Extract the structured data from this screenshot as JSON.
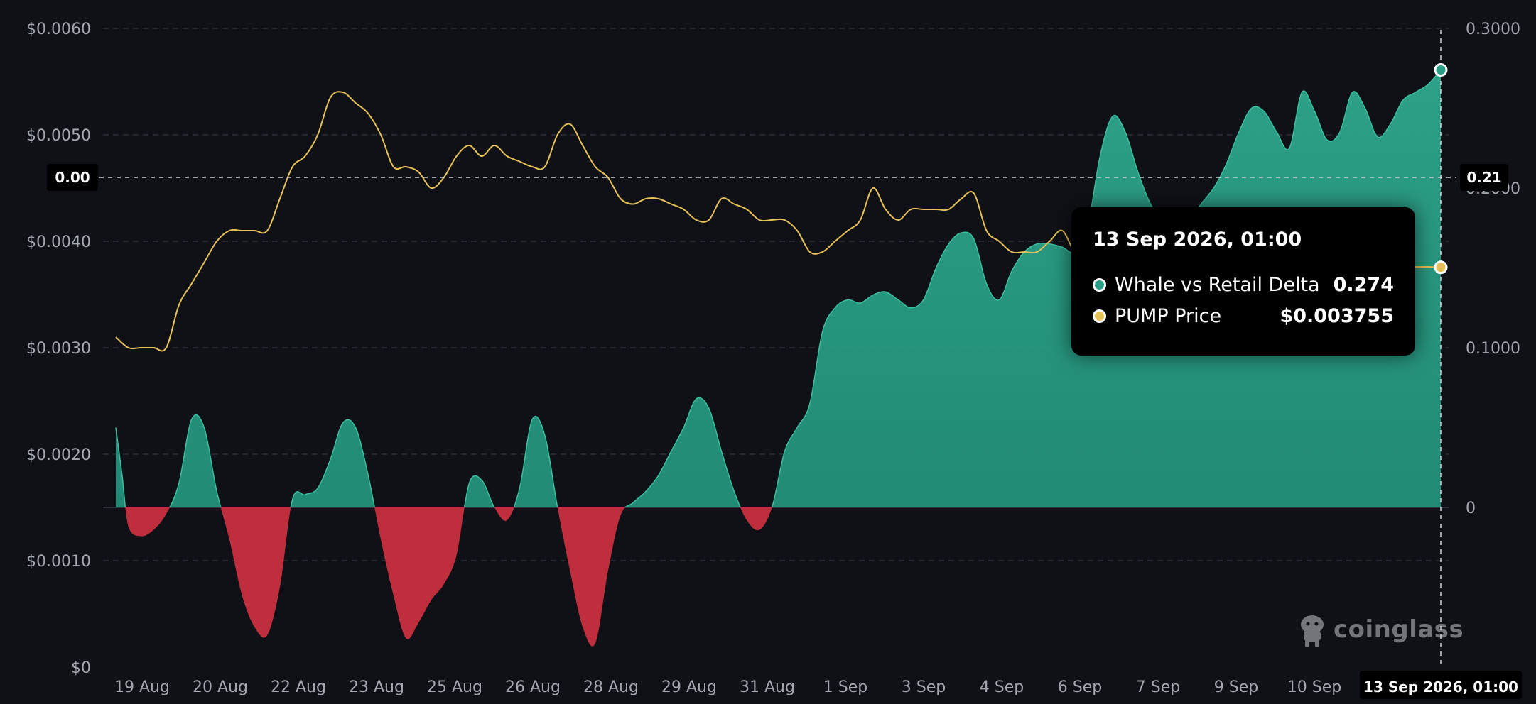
{
  "chart_data": {
    "type": "area",
    "x_labels": [
      "19 Aug",
      "20 Aug",
      "22 Aug",
      "23 Aug",
      "25 Aug",
      "26 Aug",
      "28 Aug",
      "29 Aug",
      "31 Aug",
      "1 Sep",
      "3 Sep",
      "4 Sep",
      "6 Sep",
      "7 Sep",
      "9 Sep",
      "10 Sep"
    ],
    "x_crosshair_label": "13 Sep 2026, 01:00",
    "left_axis": {
      "ticks": [
        "$0",
        "$0.0010",
        "$0.0020",
        "$0.0030",
        "$0.0040",
        "$0.0050",
        "$0.0060"
      ],
      "range": [
        0,
        0.006
      ]
    },
    "right_axis": {
      "ticks": [
        "0",
        "0.1000",
        "0.2000",
        "0.3000"
      ],
      "range": [
        -0.1,
        0.3
      ]
    },
    "crosshair": {
      "left_badge": "0.00",
      "right_badge": "0.21"
    },
    "series": [
      {
        "name": "Whale vs Retail Delta",
        "axis": "right",
        "type": "area",
        "positive_color": "#2a9d86",
        "negative_color": "#c8303f",
        "points": [
          [
            0,
            0.05
          ],
          [
            0.5,
            0.02
          ],
          [
            1,
            -0.012
          ],
          [
            2,
            -0.018
          ],
          [
            3,
            -0.014
          ],
          [
            4,
            -0.004
          ],
          [
            5,
            0.015
          ],
          [
            6,
            0.055
          ],
          [
            7,
            0.05
          ],
          [
            8,
            0.01
          ],
          [
            9,
            -0.02
          ],
          [
            10,
            -0.055
          ],
          [
            11,
            -0.075
          ],
          [
            12,
            -0.08
          ],
          [
            13,
            -0.05
          ],
          [
            14,
            0.005
          ],
          [
            15,
            0.008
          ],
          [
            16,
            0.012
          ],
          [
            17,
            0.03
          ],
          [
            18,
            0.053
          ],
          [
            19,
            0.05
          ],
          [
            20,
            0.02
          ],
          [
            21,
            -0.02
          ],
          [
            22,
            -0.055
          ],
          [
            23,
            -0.082
          ],
          [
            24,
            -0.072
          ],
          [
            25,
            -0.058
          ],
          [
            26,
            -0.048
          ],
          [
            27,
            -0.03
          ],
          [
            28,
            0.015
          ],
          [
            29,
            0.017
          ],
          [
            30,
            0.0
          ],
          [
            31,
            -0.008
          ],
          [
            32,
            0.012
          ],
          [
            33,
            0.055
          ],
          [
            34,
            0.045
          ],
          [
            35,
            0.0
          ],
          [
            36,
            -0.04
          ],
          [
            37,
            -0.075
          ],
          [
            38,
            -0.085
          ],
          [
            39,
            -0.04
          ],
          [
            40,
            -0.005
          ],
          [
            41,
            0.003
          ],
          [
            42,
            0.01
          ],
          [
            43,
            0.02
          ],
          [
            44,
            0.035
          ],
          [
            45,
            0.05
          ],
          [
            46,
            0.068
          ],
          [
            47,
            0.062
          ],
          [
            48,
            0.035
          ],
          [
            49,
            0.01
          ],
          [
            50,
            -0.008
          ],
          [
            51,
            -0.014
          ],
          [
            52,
            0.0
          ],
          [
            53,
            0.035
          ],
          [
            54,
            0.05
          ],
          [
            55,
            0.065
          ],
          [
            56,
            0.11
          ],
          [
            57,
            0.125
          ],
          [
            58,
            0.13
          ],
          [
            59,
            0.128
          ],
          [
            60,
            0.133
          ],
          [
            61,
            0.135
          ],
          [
            62,
            0.13
          ],
          [
            63,
            0.125
          ],
          [
            64,
            0.13
          ],
          [
            65,
            0.15
          ],
          [
            66,
            0.165
          ],
          [
            67,
            0.172
          ],
          [
            68,
            0.168
          ],
          [
            69,
            0.14
          ],
          [
            70,
            0.13
          ],
          [
            71,
            0.148
          ],
          [
            72,
            0.16
          ],
          [
            73,
            0.165
          ],
          [
            74,
            0.165
          ],
          [
            75,
            0.163
          ],
          [
            76,
            0.16
          ],
          [
            77,
            0.175
          ],
          [
            78,
            0.22
          ],
          [
            79,
            0.245
          ],
          [
            80,
            0.235
          ],
          [
            81,
            0.21
          ],
          [
            82,
            0.19
          ],
          [
            83,
            0.18
          ],
          [
            84,
            0.175
          ],
          [
            85,
            0.178
          ],
          [
            86,
            0.19
          ],
          [
            87,
            0.2
          ],
          [
            88,
            0.215
          ],
          [
            89,
            0.235
          ],
          [
            90,
            0.25
          ],
          [
            91,
            0.248
          ],
          [
            92,
            0.235
          ],
          [
            93,
            0.225
          ],
          [
            94,
            0.26
          ],
          [
            95,
            0.248
          ],
          [
            96,
            0.23
          ],
          [
            97,
            0.235
          ],
          [
            98,
            0.26
          ],
          [
            99,
            0.25
          ],
          [
            100,
            0.232
          ],
          [
            101,
            0.24
          ],
          [
            102,
            0.255
          ],
          [
            103,
            0.26
          ],
          [
            104,
            0.265
          ],
          [
            105,
            0.274
          ]
        ]
      },
      {
        "name": "PUMP Price",
        "axis": "left",
        "type": "line",
        "color": "#e6c157",
        "points": [
          [
            0,
            0.0031
          ],
          [
            1,
            0.003
          ],
          [
            2,
            0.003
          ],
          [
            3,
            0.003
          ],
          [
            4,
            0.003
          ],
          [
            5,
            0.0034
          ],
          [
            6,
            0.0036
          ],
          [
            7,
            0.0038
          ],
          [
            8,
            0.004
          ],
          [
            9,
            0.0041
          ],
          [
            10,
            0.0041
          ],
          [
            11,
            0.0041
          ],
          [
            12,
            0.0041
          ],
          [
            13,
            0.0044
          ],
          [
            14,
            0.0047
          ],
          [
            15,
            0.0048
          ],
          [
            16,
            0.005
          ],
          [
            17,
            0.00535
          ],
          [
            18,
            0.0054
          ],
          [
            19,
            0.0053
          ],
          [
            20,
            0.0052
          ],
          [
            21,
            0.005
          ],
          [
            22,
            0.0047
          ],
          [
            23,
            0.0047
          ],
          [
            24,
            0.00465
          ],
          [
            25,
            0.0045
          ],
          [
            26,
            0.0046
          ],
          [
            27,
            0.0048
          ],
          [
            28,
            0.0049
          ],
          [
            29,
            0.0048
          ],
          [
            30,
            0.0049
          ],
          [
            31,
            0.0048
          ],
          [
            32,
            0.00475
          ],
          [
            33,
            0.0047
          ],
          [
            34,
            0.0047
          ],
          [
            35,
            0.005
          ],
          [
            36,
            0.0051
          ],
          [
            37,
            0.0049
          ],
          [
            38,
            0.0047
          ],
          [
            39,
            0.0046
          ],
          [
            40,
            0.0044
          ],
          [
            41,
            0.00435
          ],
          [
            42,
            0.0044
          ],
          [
            43,
            0.0044
          ],
          [
            44,
            0.00435
          ],
          [
            45,
            0.0043
          ],
          [
            46,
            0.0042
          ],
          [
            47,
            0.0042
          ],
          [
            48,
            0.0044
          ],
          [
            49,
            0.00435
          ],
          [
            50,
            0.0043
          ],
          [
            51,
            0.0042
          ],
          [
            52,
            0.0042
          ],
          [
            53,
            0.0042
          ],
          [
            54,
            0.0041
          ],
          [
            55,
            0.0039
          ],
          [
            56,
            0.0039
          ],
          [
            57,
            0.004
          ],
          [
            58,
            0.0041
          ],
          [
            59,
            0.0042
          ],
          [
            60,
            0.0045
          ],
          [
            61,
            0.0043
          ],
          [
            62,
            0.0042
          ],
          [
            63,
            0.0043
          ],
          [
            64,
            0.0043
          ],
          [
            65,
            0.0043
          ],
          [
            66,
            0.0043
          ],
          [
            67,
            0.0044
          ],
          [
            68,
            0.00445
          ],
          [
            69,
            0.0041
          ],
          [
            70,
            0.004
          ],
          [
            71,
            0.0039
          ],
          [
            72,
            0.0039
          ],
          [
            73,
            0.0039
          ],
          [
            74,
            0.004
          ],
          [
            75,
            0.0041
          ],
          [
            76,
            0.0039
          ],
          [
            77,
            0.0039
          ],
          [
            78,
            0.0038
          ],
          [
            79,
            0.0038
          ],
          [
            80,
            0.0038
          ],
          [
            81,
            0.0038
          ],
          [
            82,
            0.00385
          ],
          [
            83,
            0.0038
          ],
          [
            84,
            0.00378
          ],
          [
            85,
            0.00378
          ],
          [
            86,
            0.0038
          ],
          [
            87,
            0.0038
          ],
          [
            88,
            0.00378
          ],
          [
            89,
            0.00378
          ],
          [
            90,
            0.00376
          ],
          [
            91,
            0.00376
          ],
          [
            92,
            0.00376
          ],
          [
            93,
            0.00376
          ],
          [
            94,
            0.00377
          ],
          [
            95,
            0.00376
          ],
          [
            96,
            0.00376
          ],
          [
            97,
            0.00376
          ],
          [
            98,
            0.00376
          ],
          [
            99,
            0.00376
          ],
          [
            100,
            0.00376
          ],
          [
            101,
            0.00376
          ],
          [
            102,
            0.00376
          ],
          [
            103,
            0.00376
          ],
          [
            104,
            0.00376
          ],
          [
            105,
            0.003755
          ]
        ]
      }
    ],
    "tooltip": {
      "title": "13 Sep 2026, 01:00",
      "rows": [
        {
          "label": "Whale vs Retail Delta",
          "value": "0.274",
          "color": "#2a9d86"
        },
        {
          "label": "PUMP Price",
          "value": "$0.003755",
          "color": "#e6c157"
        }
      ]
    },
    "grid": true
  },
  "watermark": {
    "text": "coinglass"
  }
}
